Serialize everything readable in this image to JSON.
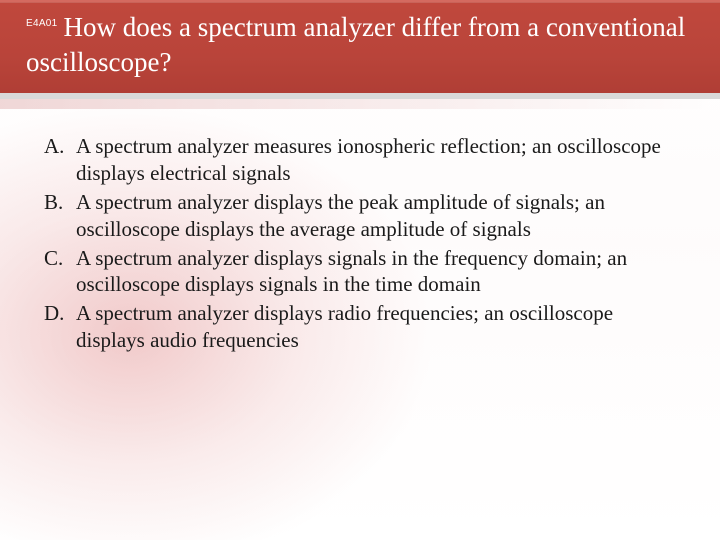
{
  "header": {
    "code": "E4A01",
    "question": "How does a spectrum analyzer differ from a conventional oscilloscope?"
  },
  "answers": [
    {
      "letter": "A.",
      "text": "A spectrum analyzer measures ionospheric reflection; an oscilloscope displays electrical signals"
    },
    {
      "letter": "B.",
      "text": "A spectrum analyzer displays the peak amplitude of signals; an oscilloscope displays the average amplitude of signals"
    },
    {
      "letter": "C.",
      "text": "A spectrum analyzer displays signals in the frequency domain; an oscilloscope displays signals in the time domain"
    },
    {
      "letter": "D.",
      "text": "A spectrum analyzer displays radio frequencies; an oscilloscope displays audio frequencies"
    }
  ],
  "style": {
    "header_bg_top": "#c0483d",
    "header_bg_bottom": "#b03e35",
    "header_text_color": "#ffffff",
    "header_fontsize": 27,
    "code_fontsize": 10,
    "answer_fontsize": 21,
    "answer_color": "#1a1a1a",
    "background_tint": "#f6e4e4",
    "divider_color": "#d9d9d9"
  }
}
